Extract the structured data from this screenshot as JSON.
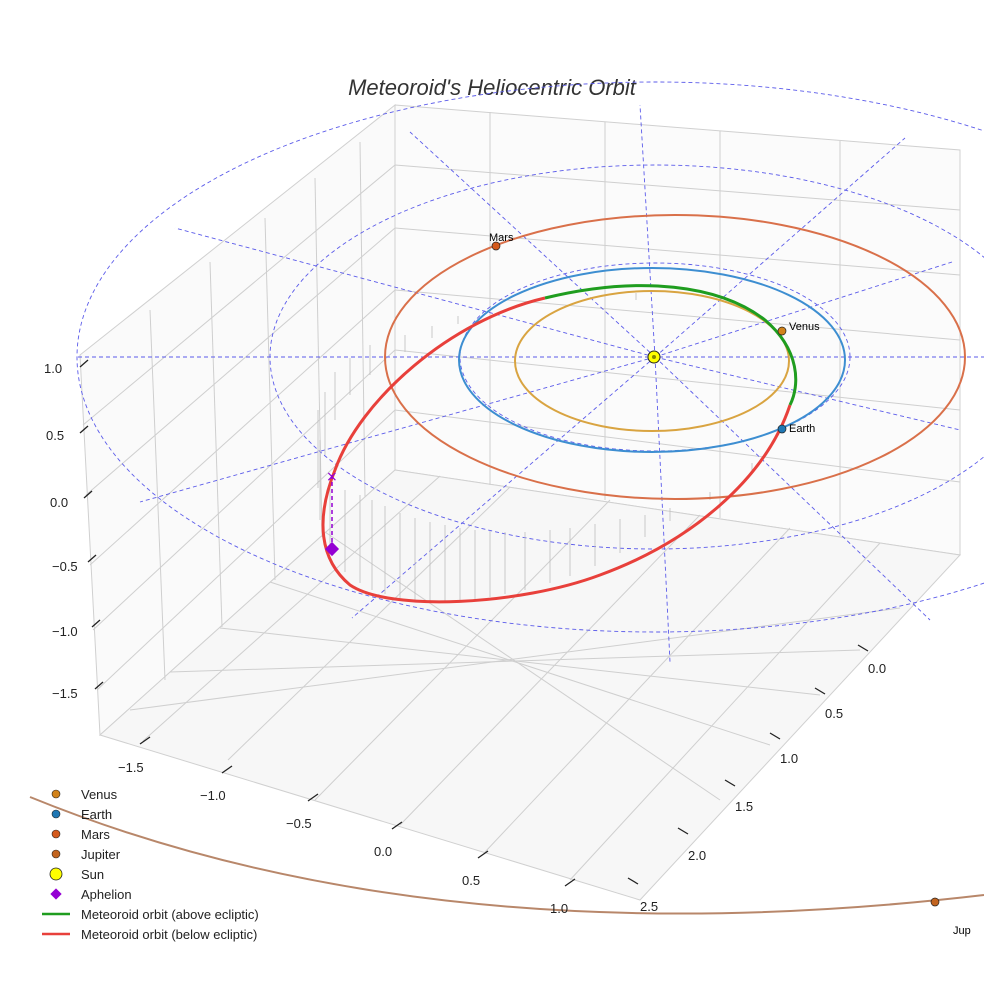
{
  "chart_data": {
    "type": "line",
    "title": "Meteoroid's Heliocentric Orbit",
    "projection": "3d",
    "axes": {
      "x_ticks": [
        "−1.5",
        "−1.0",
        "−0.5",
        "0.0",
        "0.5",
        "1.0"
      ],
      "y_ticks": [
        "0.0",
        "0.5",
        "1.0",
        "1.5",
        "2.0",
        "2.5"
      ],
      "z_ticks": [
        "1.0",
        "0.5",
        "0.0",
        "−0.5",
        "−1.0",
        "−1.5"
      ]
    },
    "bodies": [
      {
        "name": "Venus",
        "color": "#d2831b",
        "orbit_color": "#d9a441",
        "label": "Venus"
      },
      {
        "name": "Earth",
        "color": "#1f77b4",
        "orbit_color": "#3d8ed1",
        "label": "Earth"
      },
      {
        "name": "Mars",
        "color": "#d45a1d",
        "orbit_color": "#d9704a",
        "label": "Mars"
      },
      {
        "name": "Jupiter",
        "color": "#c2641f",
        "orbit_color": "#b8876a",
        "label": "Jup"
      },
      {
        "name": "Sun",
        "color": "#ffff00"
      }
    ],
    "aphelion": {
      "name": "Aphelion",
      "color": "#9400d3"
    },
    "series": [
      {
        "name": "Meteoroid orbit (above ecliptic)",
        "color": "#1f9d1f"
      },
      {
        "name": "Meteoroid orbit (below ecliptic)",
        "color": "#e8403b"
      }
    ],
    "legend": {
      "position": "bottom-left",
      "entries": [
        "Venus",
        "Earth",
        "Mars",
        "Jupiter",
        "Sun",
        "Aphelion",
        "Meteoroid orbit (above ecliptic)",
        "Meteoroid orbit (below ecliptic)"
      ]
    }
  }
}
